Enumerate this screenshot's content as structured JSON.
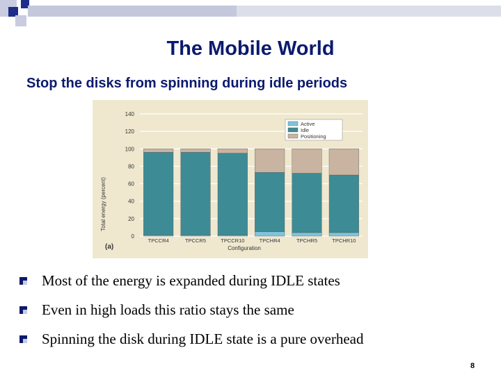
{
  "slide": {
    "title": "The Mobile World",
    "subtitle": "Stop the disks from spinning during idle periods",
    "page_number": "8",
    "bullets": [
      "Most of the energy is expanded during IDLE states",
      "Even in high loads this ratio stays the same",
      "Spinning the disk during IDLE state is a pure overhead"
    ],
    "colors": {
      "title": "#0b1a6e",
      "deco_dark": "#1f2d8a",
      "deco_light": "#c9cbe0"
    }
  },
  "chart_data": {
    "type": "bar",
    "stacked": true,
    "panel_label": "(a)",
    "xlabel": "Configuration",
    "ylabel": "Total energy (percent)",
    "ylim": [
      0,
      140
    ],
    "yticks": [
      0,
      20,
      40,
      60,
      80,
      100,
      120,
      140
    ],
    "grid": true,
    "legend": "top-right",
    "categories": [
      "TPCCR4",
      "TPCCR5",
      "TPCCR10",
      "TPCHR4",
      "TPCHR5",
      "TPCHR10"
    ],
    "series": [
      {
        "name": "Active",
        "color": "#7ec4dc",
        "values": [
          1,
          1,
          1,
          5,
          4,
          4
        ]
      },
      {
        "name": "Idle",
        "color": "#3d8b95",
        "values": [
          95,
          95,
          94,
          68,
          68,
          66
        ]
      },
      {
        "name": "Positioning",
        "color": "#c8b4a0",
        "values": [
          4,
          4,
          5,
          27,
          28,
          30
        ]
      }
    ]
  }
}
